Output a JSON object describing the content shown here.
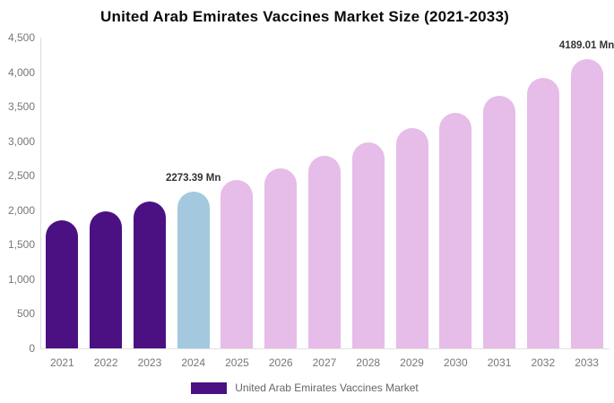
{
  "chart_data": {
    "type": "bar",
    "title": "United Arab Emirates Vaccines Market Size (2021-2033)",
    "categories": [
      "2021",
      "2022",
      "2023",
      "2024",
      "2025",
      "2026",
      "2027",
      "2028",
      "2029",
      "2030",
      "2031",
      "2032",
      "2033"
    ],
    "values": [
      1855,
      1985,
      2124,
      2273.39,
      2433,
      2604,
      2787,
      2983,
      3193,
      3417,
      3657,
      3914,
      4189.01
    ],
    "bar_colors": [
      "#4B1182",
      "#4B1182",
      "#4B1182",
      "#A4C9DE",
      "#E6BCE8",
      "#E6BCE8",
      "#E6BCE8",
      "#E6BCE8",
      "#E6BCE8",
      "#E6BCE8",
      "#E6BCE8",
      "#E6BCE8",
      "#E6BCE8"
    ],
    "annotations": [
      {
        "index": 3,
        "text": "2273.39 Mn"
      },
      {
        "index": 12,
        "text": "4189.01 Mn"
      }
    ],
    "ylim": [
      0,
      4500
    ],
    "y_ticks": [
      {
        "value": 0,
        "label": "0"
      },
      {
        "value": 500,
        "label": "500"
      },
      {
        "value": 1000,
        "label": "1,000"
      },
      {
        "value": 1500,
        "label": "1,500"
      },
      {
        "value": 2000,
        "label": "2,000"
      },
      {
        "value": 2500,
        "label": "2,500"
      },
      {
        "value": 3000,
        "label": "3,000"
      },
      {
        "value": 3500,
        "label": "3,500"
      },
      {
        "value": 4000,
        "label": "4,000"
      },
      {
        "value": 4500,
        "label": "4,500"
      }
    ],
    "grid": false,
    "legend": {
      "position": "bottom",
      "label": "United Arab Emirates Vaccines Market",
      "swatch_color": "#4B1182"
    },
    "colors": {
      "historical": "#4B1182",
      "base_year": "#A4C9DE",
      "forecast": "#E6BCE8",
      "axis_text": "#767676",
      "title_text": "#0a0a0a",
      "annotation_text": "#333333"
    }
  }
}
